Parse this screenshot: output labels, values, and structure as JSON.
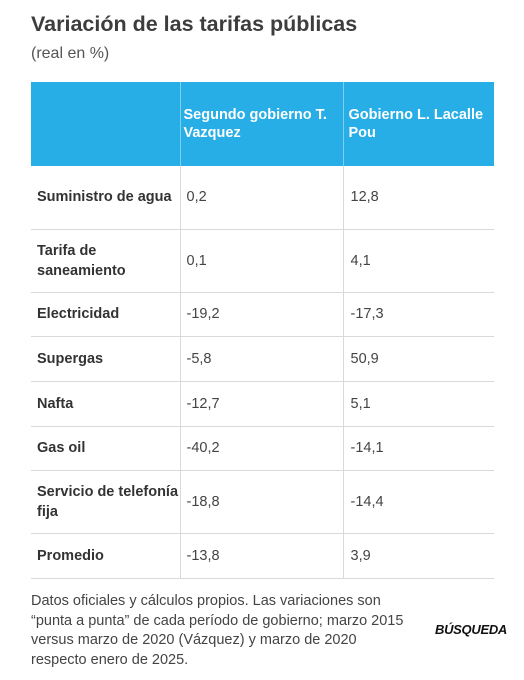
{
  "title": "Variación de las tarifas públicas",
  "subtitle": "(real en %)",
  "chart_data": {
    "type": "table",
    "columns": [
      "",
      "Segundo gobierno T. Vazquez",
      "Gobierno L. Lacalle Pou"
    ],
    "rows": [
      {
        "label": "Suministro de agua",
        "values": [
          "0,2",
          "12,8"
        ]
      },
      {
        "label": "Tarifa de saneamiento",
        "values": [
          "0,1",
          "4,1"
        ]
      },
      {
        "label": "Electricidad",
        "values": [
          "-19,2",
          "-17,3"
        ]
      },
      {
        "label": "Supergas",
        "values": [
          "-5,8",
          "50,9"
        ]
      },
      {
        "label": "Nafta",
        "values": [
          "-12,7",
          "5,1"
        ]
      },
      {
        "label": "Gas oil",
        "values": [
          "-40,2",
          "-14,1"
        ]
      },
      {
        "label": "Servicio de telefonía fija",
        "values": [
          "-18,8",
          "-14,4"
        ]
      },
      {
        "label": "Promedio",
        "values": [
          "-13,8",
          "3,9"
        ]
      }
    ],
    "header_color": "#27aee6"
  },
  "note": "Datos oficiales y cálculos propios. Las variaciones son “punta a punta” de cada período de gobierno; marzo 2015 versus marzo de 2020 (Vázquez) y marzo de 2020 respecto enero de 2025.",
  "logo": "BÚSQUEDA"
}
